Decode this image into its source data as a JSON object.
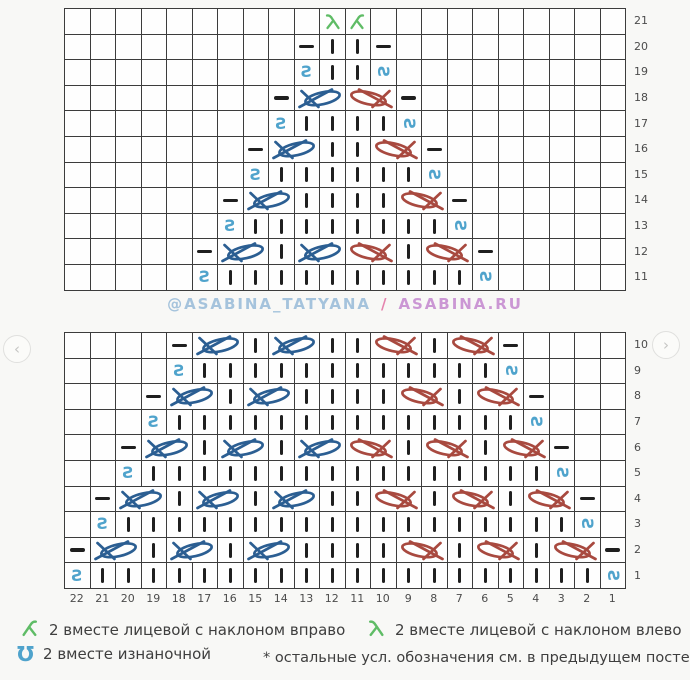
{
  "banner": {
    "handle": "@ASABINA_TATYANA",
    "separator": "/",
    "site": "ASABINA.RU"
  },
  "nav": {
    "prev": "‹",
    "next": "›"
  },
  "colors": {
    "cable_blue": "#2b5e92",
    "cable_red": "#a8493f",
    "teal": "#4fa3cc",
    "green": "#5fbc66",
    "stitch": "#1f1f1f",
    "grid_line": "#3c3c3c"
  },
  "symbols": {
    "k": "knit-stitch-bar",
    "p": "purl-stitch-dash",
    "sv": "purl2tog-vertical",
    "sh": "purl2tog-rotated",
    "cb": "cable-cross-blue-2st",
    "cr": "cable-cross-red-2st",
    "dl": "k2tog-slant-left",
    "dr": "k2tog-slant-right"
  },
  "legend": {
    "items": [
      {
        "icon": "k2tog-right-icon",
        "label": "2 вместе лицевой с наклоном вправо"
      },
      {
        "icon": "k2tog-left-icon",
        "label": "2 вместе лицевой с наклоном влево"
      },
      {
        "icon": "purl2tog-icon",
        "label": "2 вместе изнаночной"
      },
      {
        "icon": null,
        "label": "* остальные усл. обозначения см. в предыдущем посте"
      }
    ]
  },
  "charts": {
    "top": {
      "row_numbers": [
        21,
        20,
        19,
        18,
        17,
        16,
        15,
        14,
        13,
        12,
        11
      ],
      "rows": [
        {
          "num": 21,
          "cells": {
            "12": "dl",
            "11": "dr"
          }
        },
        {
          "num": 20,
          "cells": {
            "13": "p",
            "12": "k",
            "11": "k",
            "10": "p"
          }
        },
        {
          "num": 19,
          "cells": {
            "13": "sv",
            "12": "k",
            "11": "k",
            "10": "sh"
          }
        },
        {
          "num": 18,
          "cells": {
            "14": "p",
            "13": "cb",
            "11": "cr",
            "9": "p"
          }
        },
        {
          "num": 17,
          "cells": {
            "14": "sv",
            "13": "k",
            "12": "k",
            "11": "k",
            "10": "k",
            "9": "sh"
          }
        },
        {
          "num": 16,
          "cells": {
            "15": "p",
            "14": "cb",
            "12": "k",
            "11": "k",
            "10": "cr",
            "8": "p"
          }
        },
        {
          "num": 15,
          "cells": {
            "15": "sv",
            "14": "k",
            "13": "k",
            "12": "k",
            "11": "k",
            "10": "k",
            "9": "k",
            "8": "sh"
          }
        },
        {
          "num": 14,
          "cells": {
            "16": "p",
            "15": "cb",
            "13": "k",
            "12": "k",
            "11": "k",
            "10": "k",
            "9": "cr",
            "7": "p"
          }
        },
        {
          "num": 13,
          "cells": {
            "16": "sv",
            "15": "k",
            "14": "k",
            "13": "k",
            "12": "k",
            "11": "k",
            "10": "k",
            "9": "k",
            "8": "k",
            "7": "sh"
          }
        },
        {
          "num": 12,
          "cells": {
            "17": "p",
            "16": "cb",
            "14": "k",
            "13": "cb",
            "11": "cr",
            "9": "k",
            "8": "cr",
            "6": "p"
          }
        },
        {
          "num": 11,
          "cells": {
            "17": "sv",
            "16": "k",
            "15": "k",
            "14": "k",
            "13": "k",
            "12": "k",
            "11": "k",
            "10": "k",
            "9": "k",
            "8": "k",
            "7": "k",
            "6": "sh"
          }
        }
      ]
    },
    "bottom": {
      "row_numbers": [
        10,
        9,
        8,
        7,
        6,
        5,
        4,
        3,
        2,
        1
      ],
      "col_numbers": [
        22,
        21,
        20,
        19,
        18,
        17,
        16,
        15,
        14,
        13,
        12,
        11,
        10,
        9,
        8,
        7,
        6,
        5,
        4,
        3,
        2,
        1
      ],
      "rows": [
        {
          "num": 10,
          "cells": {
            "18": "p",
            "17": "cb",
            "15": "k",
            "14": "cb",
            "12": "k",
            "11": "k",
            "10": "cr",
            "8": "k",
            "7": "cr",
            "5": "p"
          }
        },
        {
          "num": 9,
          "cells": {
            "18": "sv",
            "17": "k",
            "16": "k",
            "15": "k",
            "14": "k",
            "13": "k",
            "12": "k",
            "11": "k",
            "10": "k",
            "9": "k",
            "8": "k",
            "7": "k",
            "6": "k",
            "5": "sh"
          }
        },
        {
          "num": 8,
          "cells": {
            "19": "p",
            "18": "cb",
            "16": "k",
            "15": "cb",
            "13": "k",
            "12": "k",
            "11": "k",
            "10": "k",
            "9": "cr",
            "7": "k",
            "6": "cr",
            "4": "p"
          }
        },
        {
          "num": 7,
          "cells": {
            "19": "sv",
            "18": "k",
            "17": "k",
            "16": "k",
            "15": "k",
            "14": "k",
            "13": "k",
            "12": "k",
            "11": "k",
            "10": "k",
            "9": "k",
            "8": "k",
            "7": "k",
            "6": "k",
            "5": "k",
            "4": "sh"
          }
        },
        {
          "num": 6,
          "cells": {
            "20": "p",
            "19": "cb",
            "17": "k",
            "16": "cb",
            "14": "k",
            "13": "cb",
            "11": "cr",
            "9": "k",
            "8": "cr",
            "6": "k",
            "5": "cr",
            "3": "p"
          }
        },
        {
          "num": 5,
          "cells": {
            "20": "sv",
            "19": "k",
            "18": "k",
            "17": "k",
            "16": "k",
            "15": "k",
            "14": "k",
            "13": "k",
            "12": "k",
            "11": "k",
            "10": "k",
            "9": "k",
            "8": "k",
            "7": "k",
            "6": "k",
            "5": "k",
            "4": "k",
            "3": "sh"
          }
        },
        {
          "num": 4,
          "cells": {
            "21": "p",
            "20": "cb",
            "18": "k",
            "17": "cb",
            "15": "k",
            "14": "cb",
            "12": "k",
            "11": "k",
            "10": "cr",
            "8": "k",
            "7": "cr",
            "5": "k",
            "4": "cr",
            "2": "p"
          }
        },
        {
          "num": 3,
          "cells": {
            "21": "sv",
            "20": "k",
            "19": "k",
            "18": "k",
            "17": "k",
            "16": "k",
            "15": "k",
            "14": "k",
            "13": "k",
            "12": "k",
            "11": "k",
            "10": "k",
            "9": "k",
            "8": "k",
            "7": "k",
            "6": "k",
            "5": "k",
            "4": "k",
            "3": "k",
            "2": "sh"
          }
        },
        {
          "num": 2,
          "cells": {
            "22": "p",
            "21": "cb",
            "19": "k",
            "18": "cb",
            "16": "k",
            "15": "cb",
            "13": "k",
            "12": "k",
            "11": "k",
            "10": "k",
            "9": "cr",
            "7": "k",
            "6": "cr",
            "4": "k",
            "3": "cr",
            "1": "p"
          }
        },
        {
          "num": 1,
          "cells": {
            "22": "sv",
            "21": "k",
            "20": "k",
            "19": "k",
            "18": "k",
            "17": "k",
            "16": "k",
            "15": "k",
            "14": "k",
            "13": "k",
            "12": "k",
            "11": "k",
            "10": "k",
            "9": "k",
            "8": "k",
            "7": "k",
            "6": "k",
            "5": "k",
            "4": "k",
            "3": "k",
            "2": "k",
            "1": "sh"
          }
        }
      ]
    }
  }
}
